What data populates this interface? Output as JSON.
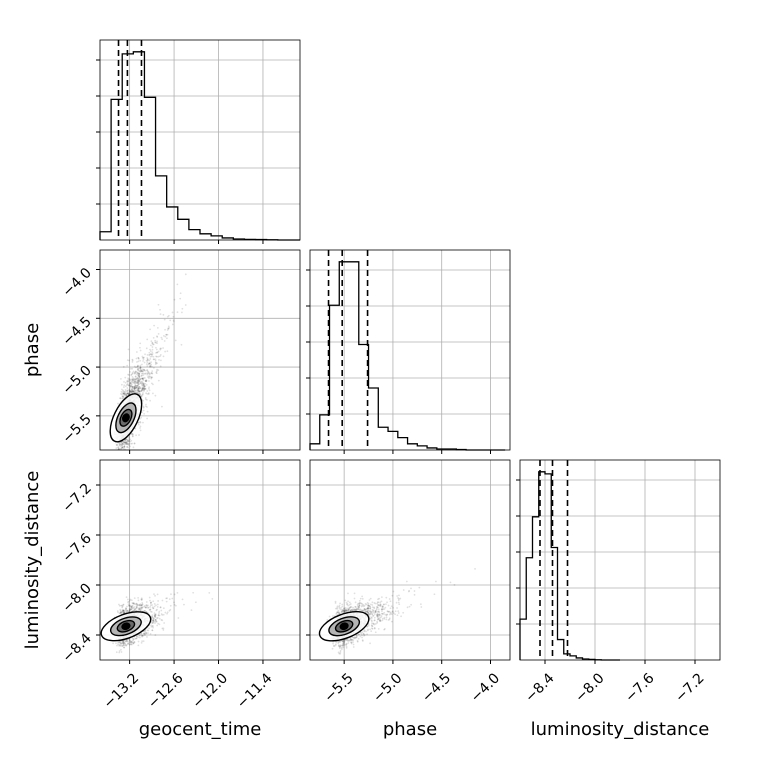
{
  "chart_data": {
    "type": "corner",
    "parameters": [
      "geocent_time",
      "phase",
      "luminosity_distance"
    ],
    "axis_labels": {
      "x": [
        "geocent_time",
        "phase",
        "luminosity_distance"
      ],
      "y": [
        "phase",
        "luminosity_distance"
      ]
    },
    "ranges": {
      "geocent_time": [
        -13.6,
        -10.9
      ],
      "phase": [
        -5.85,
        -3.8
      ],
      "luminosity_distance": [
        -8.6,
        -7.0
      ]
    },
    "ticks": {
      "geocent_time": [
        {
          "value": -13.2,
          "label": "−13.2"
        },
        {
          "value": -12.6,
          "label": "−12.6"
        },
        {
          "value": -12.0,
          "label": "−12.0"
        },
        {
          "value": -11.4,
          "label": "−11.4"
        }
      ],
      "phase": [
        {
          "value": -5.5,
          "label": "−5.5"
        },
        {
          "value": -5.0,
          "label": "−5.0"
        },
        {
          "value": -4.5,
          "label": "−4.5"
        },
        {
          "value": -4.0,
          "label": "−4.0"
        }
      ],
      "luminosity_distance": [
        {
          "value": -8.4,
          "label": "−8.4"
        },
        {
          "value": -8.0,
          "label": "−8.0"
        },
        {
          "value": -7.6,
          "label": "−7.6"
        },
        {
          "value": -7.2,
          "label": "−7.2"
        }
      ]
    },
    "histograms": {
      "geocent_time": {
        "bin_edges": [
          -13.6,
          -13.45,
          -13.3,
          -13.15,
          -13.0,
          -12.85,
          -12.7,
          -12.55,
          -12.4,
          -12.25,
          -12.1,
          -11.95,
          -11.8,
          -11.65,
          -11.5,
          -11.35,
          -11.2,
          -11.05,
          -10.9
        ],
        "counts": [
          0.04,
          0.68,
          0.9,
          0.91,
          0.69,
          0.31,
          0.16,
          0.1,
          0.05,
          0.03,
          0.02,
          0.01,
          0.005,
          0.003,
          0.002,
          0.001,
          0.0,
          0.0
        ],
        "quantiles": [
          -13.35,
          -13.23,
          -13.04
        ]
      },
      "phase": {
        "bin_edges": [
          -5.85,
          -5.75,
          -5.65,
          -5.55,
          -5.45,
          -5.35,
          -5.25,
          -5.15,
          -5.05,
          -4.95,
          -4.85,
          -4.75,
          -4.65,
          -4.55,
          -4.45,
          -4.35,
          -4.25,
          -4.15,
          -4.05,
          -3.95,
          -3.85
        ],
        "counts": [
          0.03,
          0.17,
          0.7,
          0.91,
          0.91,
          0.51,
          0.3,
          0.11,
          0.09,
          0.06,
          0.03,
          0.02,
          0.01,
          0.005,
          0.005,
          0.002,
          0.0,
          0.0,
          0.0,
          0.0
        ],
        "quantiles": [
          -5.66,
          -5.52,
          -5.26
        ]
      },
      "luminosity_distance": {
        "bin_edges": [
          -8.6,
          -8.55,
          -8.5,
          -8.45,
          -8.4,
          -8.35,
          -8.3,
          -8.25,
          -8.2,
          -8.15,
          -8.1,
          -8.05,
          -8.0,
          -7.95,
          -7.9,
          -7.85,
          -7.8
        ],
        "counts": [
          0.2,
          0.5,
          0.7,
          0.92,
          0.91,
          0.55,
          0.1,
          0.03,
          0.02,
          0.01,
          0.005,
          0.003,
          0.001,
          0.0,
          0.0,
          0.0
        ],
        "quantiles": [
          -8.44,
          -8.34,
          -8.22
        ]
      }
    },
    "scatter_2d": [
      {
        "x": "geocent_time",
        "y": "phase",
        "center": [
          -13.25,
          -5.52
        ],
        "slope": 1.55,
        "spread": 0.17,
        "n": 1800
      },
      {
        "x": "geocent_time",
        "y": "luminosity_distance",
        "center": [
          -13.25,
          -8.33
        ],
        "slope": 0.22,
        "spread": 0.07,
        "n": 1800
      },
      {
        "x": "phase",
        "y": "luminosity_distance",
        "center": [
          -5.5,
          -8.33
        ],
        "slope": 0.3,
        "spread": 0.07,
        "n": 1800
      }
    ],
    "grid": true,
    "quantile_lines": "dashed"
  }
}
